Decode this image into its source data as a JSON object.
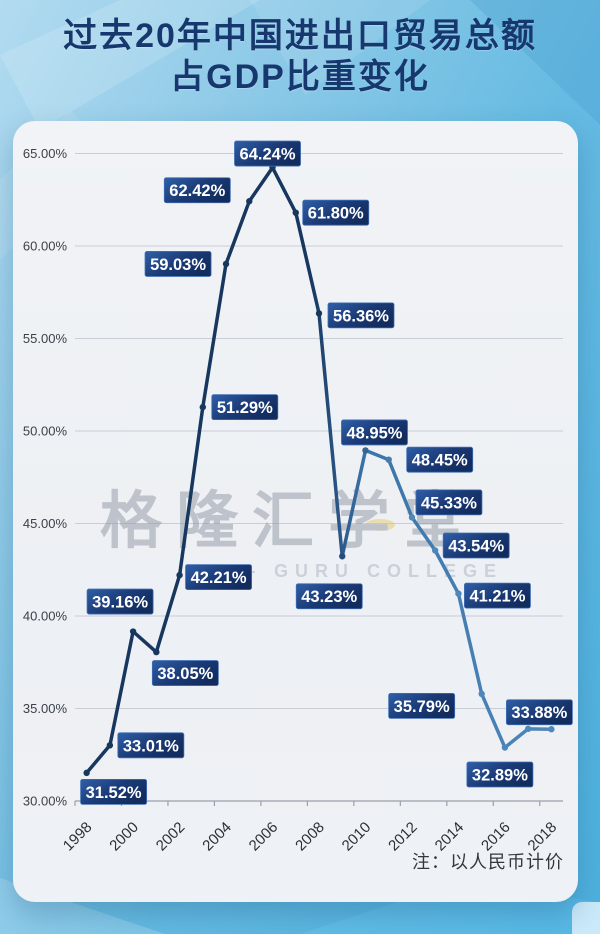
{
  "page": {
    "title_line1": "过去20年中国进出口贸易总额",
    "title_line2": "占GDP比重变化",
    "note": "注：以人民币计价"
  },
  "watermark": {
    "text": "格隆汇学堂",
    "subtext": "— GURU COLLEGE"
  },
  "colors": {
    "title": "#17386e",
    "card_bg": "#eef1f5",
    "grid": "#c9cdd6",
    "axis": "#9aa0ab",
    "axis_text": "#3b4049",
    "xtick_text": "#2c3036",
    "line_start": "#17375f",
    "line_end": "#4e87b9",
    "label_box_start": "#2f5fa8",
    "label_box_end": "#122c5e",
    "label_box_border": "#3f6db3",
    "label_text": "#ffffff",
    "watermark_gray": "#8f97a4",
    "watermark_sub": "#aab2bf",
    "watermark_yellow": "#e6c14b"
  },
  "chart_data": {
    "type": "line",
    "title": "过去20年中国进出口贸易总额占GDP比重变化",
    "x": [
      1998,
      1999,
      2000,
      2001,
      2002,
      2003,
      2004,
      2005,
      2006,
      2007,
      2008,
      2009,
      2010,
      2011,
      2012,
      2013,
      2014,
      2015,
      2016,
      2017,
      2018
    ],
    "values": [
      31.52,
      33.01,
      39.16,
      38.05,
      42.21,
      51.29,
      59.03,
      62.42,
      64.24,
      61.8,
      56.36,
      43.23,
      48.95,
      48.45,
      45.33,
      43.54,
      41.21,
      35.79,
      32.89,
      33.9,
      33.88
    ],
    "point_labels": [
      "31.52%",
      "33.01%",
      "39.16%",
      "38.05%",
      "42.21%",
      "51.29%",
      "59.03%",
      "62.42%",
      "64.24%",
      "61.80%",
      "56.36%",
      "43.23%",
      "48.95%",
      "48.45%",
      "45.33%",
      "43.54%",
      "41.21%",
      "35.79%",
      "32.89%",
      null,
      "33.88%"
    ],
    "xticks": [
      "1998",
      "2000",
      "2002",
      "2004",
      "2006",
      "2008",
      "2010",
      "2012",
      "2014",
      "2016",
      "2018"
    ],
    "yticks": [
      "65.00%",
      "60.00%",
      "55.00%",
      "50.00%",
      "45.00%",
      "40.00%",
      "35.00%",
      "30.00%"
    ],
    "ylim": [
      30,
      65
    ],
    "ytick_step": 5,
    "grid": true,
    "legend": false,
    "note": "以人民币计价"
  }
}
